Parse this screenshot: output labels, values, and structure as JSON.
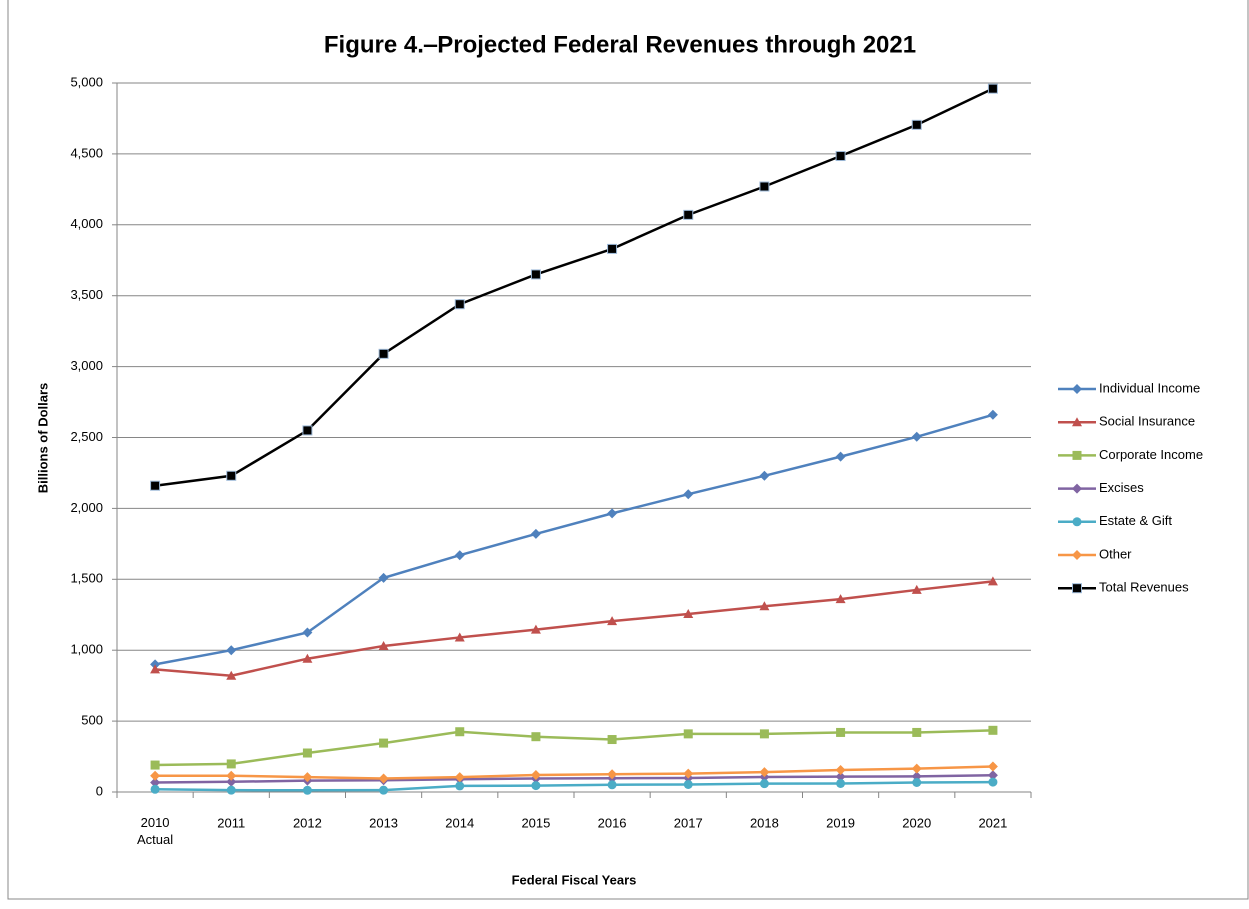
{
  "chart_data": {
    "type": "line",
    "title": "Figure 4.‒Projected Federal Revenues through 2021",
    "y_label": "Billions of Dollars",
    "x_label": "Federal Fiscal Years",
    "categories": [
      "2010\nActual",
      "2011",
      "2012",
      "2013",
      "2014",
      "2015",
      "2016",
      "2017",
      "2018",
      "2019",
      "2020",
      "2021"
    ],
    "series": [
      {
        "name": "Individual Income",
        "color": "#4F81BD",
        "marker": "diamond",
        "values": [
          900,
          1000,
          1125,
          1510,
          1670,
          1820,
          1965,
          2100,
          2230,
          2365,
          2505,
          2660
        ]
      },
      {
        "name": "Social Insurance",
        "color": "#C0504D",
        "marker": "triangle",
        "values": [
          865,
          820,
          940,
          1030,
          1090,
          1145,
          1205,
          1255,
          1310,
          1360,
          1425,
          1485
        ]
      },
      {
        "name": "Corporate Income",
        "color": "#9BBB59",
        "marker": "square",
        "values": [
          190,
          198,
          275,
          345,
          425,
          390,
          370,
          410,
          410,
          420,
          420,
          435
        ]
      },
      {
        "name": "Excises",
        "color": "#8064A2",
        "marker": "diamond",
        "values": [
          67,
          72,
          80,
          83,
          90,
          95,
          97,
          99,
          106,
          108,
          110,
          118
        ]
      },
      {
        "name": "Estate & Gift",
        "color": "#4BACC6",
        "marker": "circle",
        "values": [
          19,
          13,
          12,
          13,
          43,
          45,
          51,
          53,
          59,
          60,
          67,
          70
        ]
      },
      {
        "name": "Other",
        "color": "#F79646",
        "marker": "diamond",
        "values": [
          115,
          115,
          105,
          95,
          105,
          120,
          125,
          130,
          140,
          155,
          165,
          180
        ]
      },
      {
        "name": "Total Revenues",
        "color": "#000000",
        "marker": "square",
        "values": [
          2160,
          2230,
          2550,
          3090,
          3440,
          3650,
          3830,
          4070,
          4270,
          4485,
          4705,
          4960
        ]
      }
    ],
    "ylim": [
      0,
      5000
    ],
    "yticks": [
      0,
      500,
      {
        "value": 1000,
        "label": "1,000"
      },
      {
        "value": 1500,
        "label": "1,500"
      },
      {
        "value": 2000,
        "label": "2,000"
      },
      {
        "value": 2500,
        "label": "2,500"
      },
      {
        "value": 3000,
        "label": "3,000"
      },
      {
        "value": 3500,
        "label": "3,500"
      },
      {
        "value": 4000,
        "label": "4,000"
      },
      {
        "value": 4500,
        "label": "4,500"
      },
      {
        "value": 5000,
        "label": "5,000"
      }
    ],
    "grid": true,
    "legend": "right"
  }
}
